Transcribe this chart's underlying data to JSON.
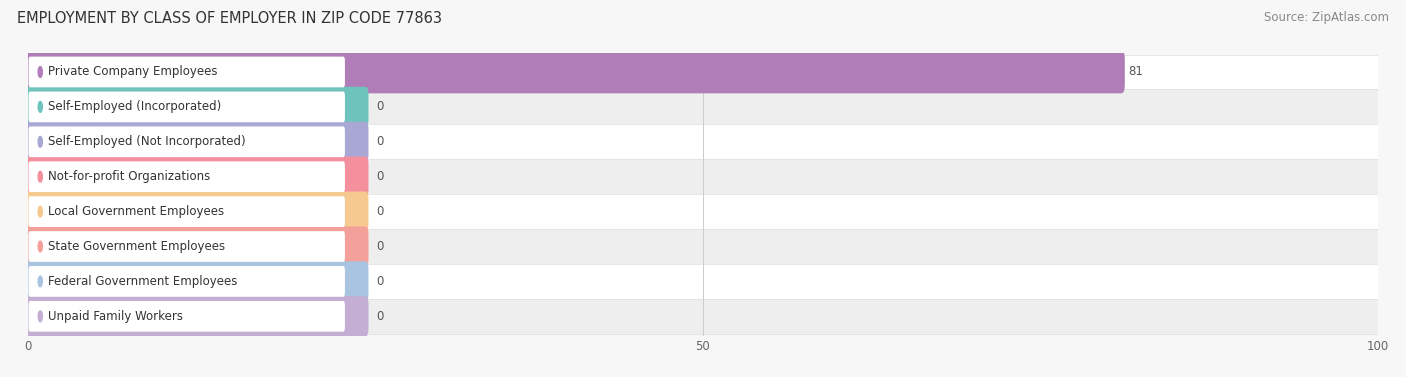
{
  "title": "EMPLOYMENT BY CLASS OF EMPLOYER IN ZIP CODE 77863",
  "source": "Source: ZipAtlas.com",
  "categories": [
    "Private Company Employees",
    "Self-Employed (Incorporated)",
    "Self-Employed (Not Incorporated)",
    "Not-for-profit Organizations",
    "Local Government Employees",
    "State Government Employees",
    "Federal Government Employees",
    "Unpaid Family Workers"
  ],
  "values": [
    81,
    0,
    0,
    0,
    0,
    0,
    0,
    0
  ],
  "bar_colors": [
    "#b07db8",
    "#6ec4bc",
    "#a9a8d4",
    "#f4909e",
    "#f5c990",
    "#f4a09a",
    "#a8c4e0",
    "#c4aed4"
  ],
  "xlim": [
    0,
    100
  ],
  "xticks": [
    0,
    50,
    100
  ],
  "background_color": "#f7f7f7",
  "title_fontsize": 10.5,
  "source_fontsize": 8.5,
  "bar_label_fontsize": 8.5,
  "value_label_fontsize": 8.5
}
